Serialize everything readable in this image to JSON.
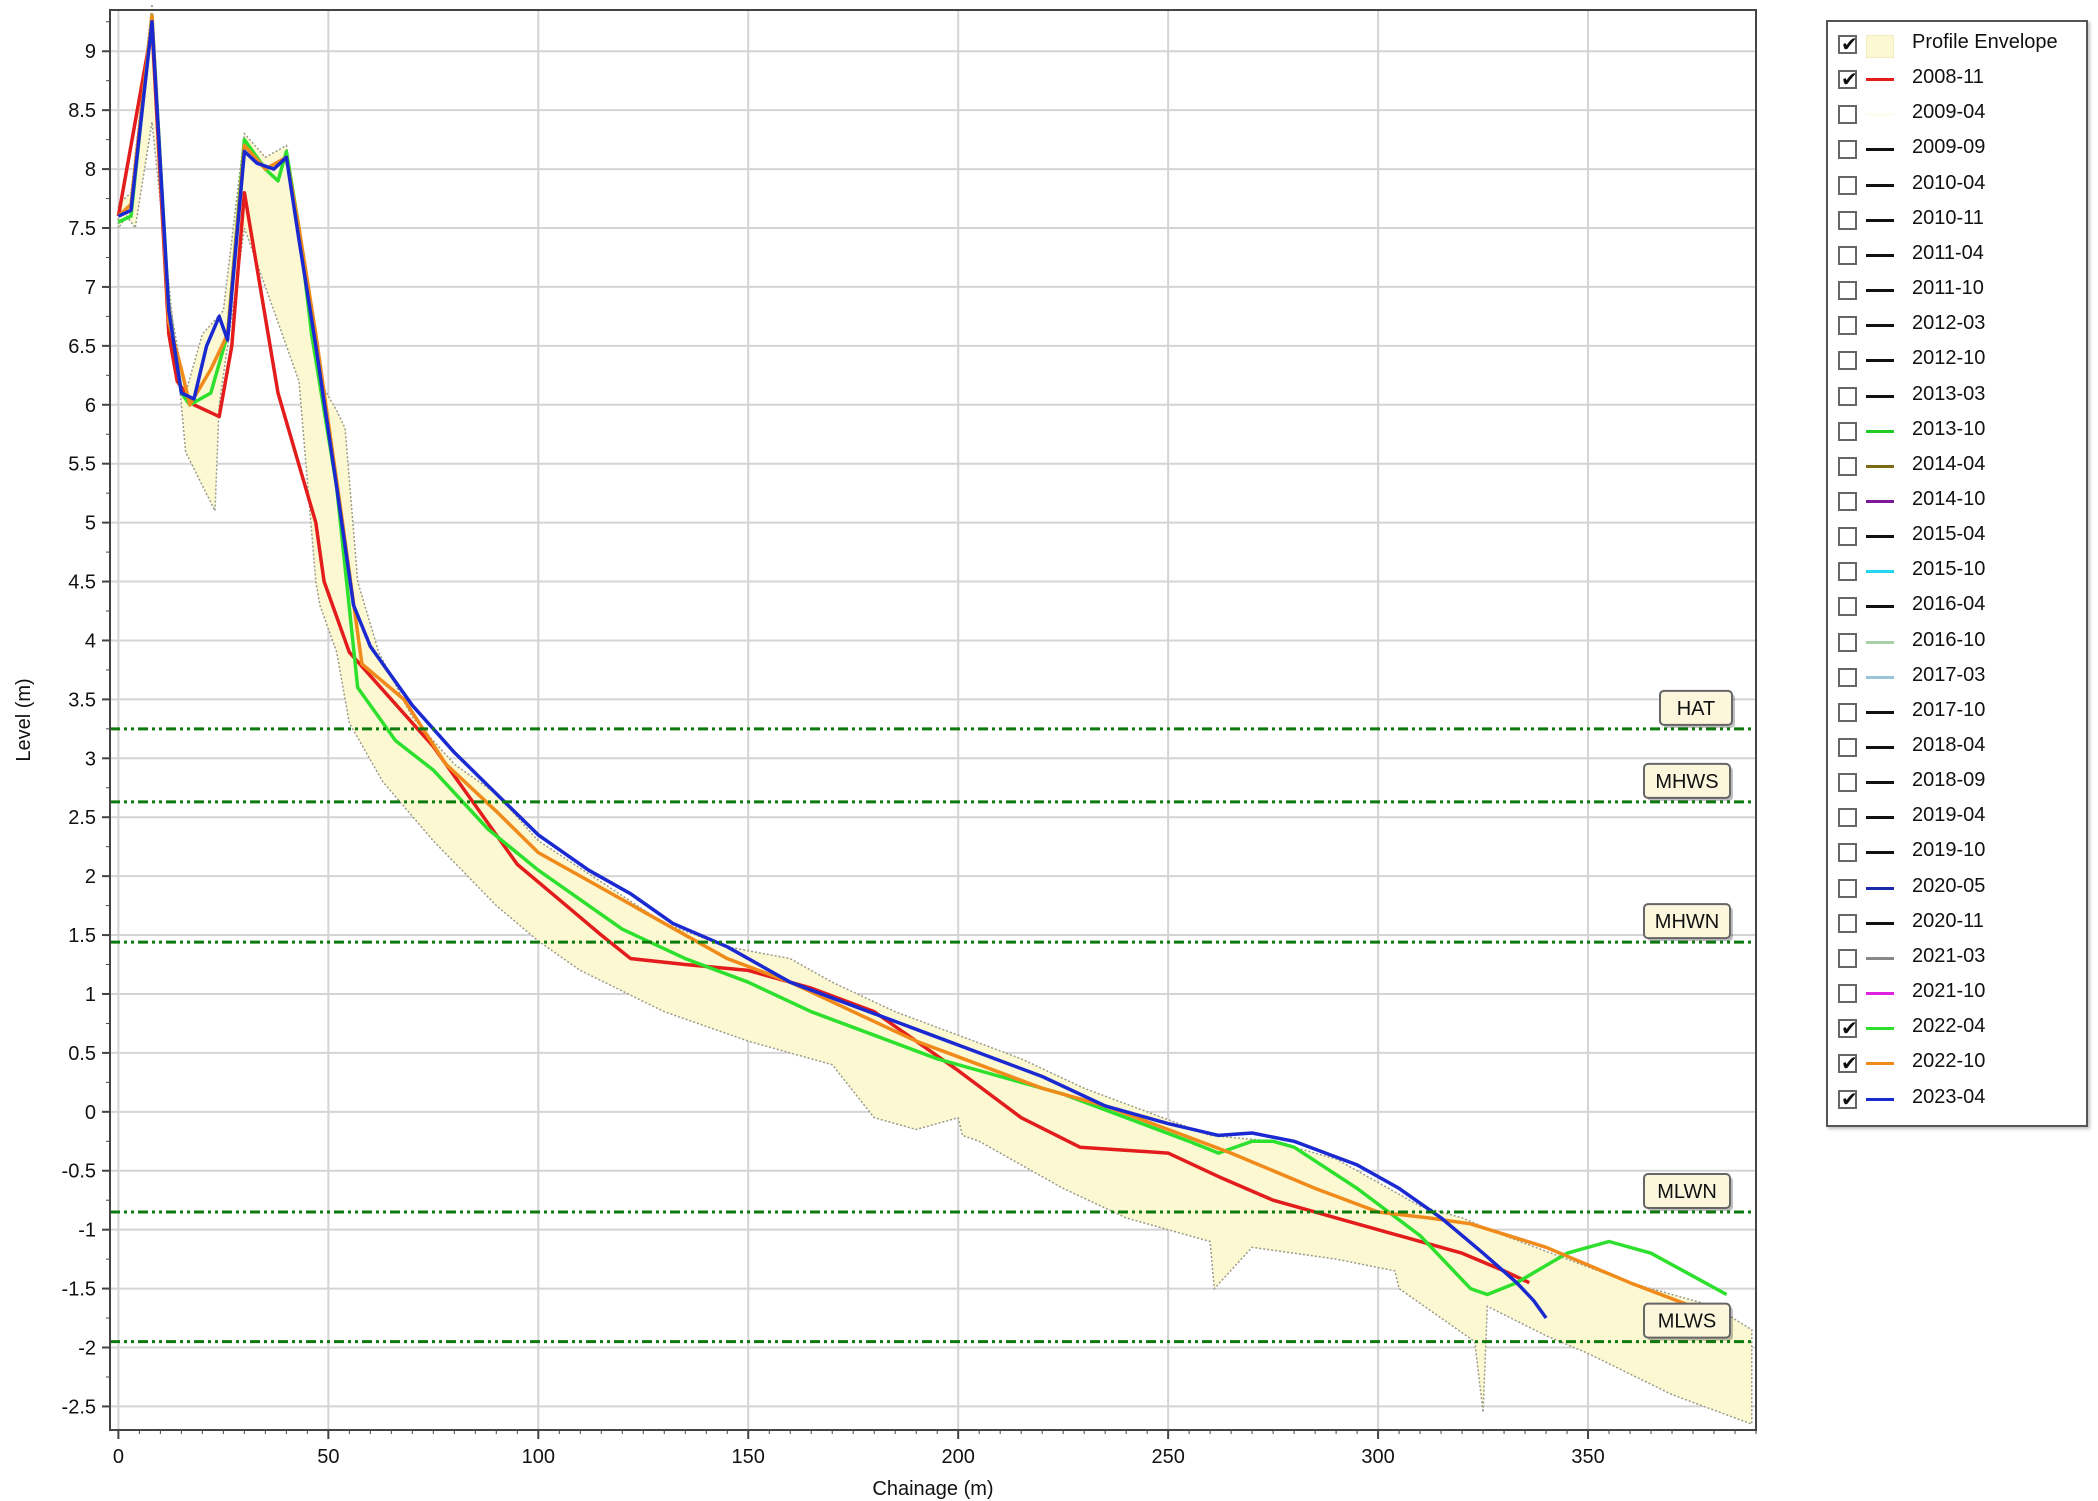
{
  "chart_data": {
    "type": "line",
    "xlabel": "Chainage (m)",
    "ylabel": "Level (m)",
    "xlim": [
      -2,
      390
    ],
    "ylim": [
      -2.7,
      9.35
    ],
    "x_ticks": [
      0,
      50,
      100,
      150,
      200,
      250,
      300,
      350
    ],
    "y_ticks": [
      9,
      8.5,
      8,
      7.5,
      7,
      6.5,
      6,
      5.5,
      5,
      4.5,
      4,
      3.5,
      3,
      2.5,
      2,
      1.5,
      1,
      0.5,
      0,
      -0.5,
      -1,
      -1.5,
      -2,
      -2.5
    ],
    "grid": true,
    "legend_position": "right",
    "envelope": {
      "name": "Profile Envelope",
      "color": "#fcf8d2",
      "upper": [
        [
          0,
          7.7
        ],
        [
          3,
          7.8
        ],
        [
          8,
          9.4
        ],
        [
          12,
          6.9
        ],
        [
          16,
          6.1
        ],
        [
          20,
          6.6
        ],
        [
          25,
          6.8
        ],
        [
          30,
          8.3
        ],
        [
          35,
          8.1
        ],
        [
          40,
          8.2
        ],
        [
          43,
          7.5
        ],
        [
          48,
          6.2
        ],
        [
          52,
          5.95
        ],
        [
          54,
          5.8
        ],
        [
          57,
          4.5
        ],
        [
          62,
          3.9
        ],
        [
          70,
          3.35
        ],
        [
          80,
          2.95
        ],
        [
          90,
          2.7
        ],
        [
          100,
          2.3
        ],
        [
          115,
          1.95
        ],
        [
          130,
          1.6
        ],
        [
          145,
          1.4
        ],
        [
          160,
          1.3
        ],
        [
          170,
          1.1
        ],
        [
          185,
          0.85
        ],
        [
          200,
          0.65
        ],
        [
          215,
          0.45
        ],
        [
          230,
          0.2
        ],
        [
          245,
          0.0
        ],
        [
          260,
          -0.2
        ],
        [
          275,
          -0.25
        ],
        [
          290,
          -0.4
        ],
        [
          300,
          -0.6
        ],
        [
          310,
          -0.8
        ],
        [
          320,
          -0.9
        ],
        [
          330,
          -1.05
        ],
        [
          345,
          -1.25
        ],
        [
          360,
          -1.45
        ],
        [
          380,
          -1.65
        ],
        [
          389,
          -1.85
        ]
      ],
      "lower": [
        [
          389,
          -2.65
        ],
        [
          370,
          -2.4
        ],
        [
          350,
          -2.05
        ],
        [
          340,
          -1.9
        ],
        [
          326,
          -1.65
        ],
        [
          325,
          -2.55
        ],
        [
          323,
          -1.95
        ],
        [
          305,
          -1.5
        ],
        [
          304,
          -1.35
        ],
        [
          290,
          -1.25
        ],
        [
          270,
          -1.15
        ],
        [
          261,
          -1.5
        ],
        [
          260,
          -1.1
        ],
        [
          240,
          -0.9
        ],
        [
          225,
          -0.65
        ],
        [
          205,
          -0.25
        ],
        [
          201,
          -0.2
        ],
        [
          200,
          -0.05
        ],
        [
          190,
          -0.15
        ],
        [
          180,
          -0.05
        ],
        [
          170,
          0.4
        ],
        [
          165,
          0.45
        ],
        [
          150,
          0.6
        ],
        [
          130,
          0.85
        ],
        [
          110,
          1.2
        ],
        [
          100,
          1.45
        ],
        [
          90,
          1.75
        ],
        [
          75,
          2.3
        ],
        [
          63,
          2.8
        ],
        [
          55,
          3.3
        ],
        [
          52,
          3.9
        ],
        [
          48,
          4.3
        ],
        [
          47,
          4.5
        ],
        [
          43,
          6.2
        ],
        [
          30,
          7.5
        ],
        [
          24,
          6.0
        ],
        [
          23,
          5.1
        ],
        [
          16,
          5.6
        ],
        [
          15,
          6.0
        ],
        [
          8,
          8.4
        ],
        [
          4,
          7.5
        ],
        [
          2,
          7.6
        ],
        [
          0,
          7.5
        ]
      ]
    },
    "series": [
      {
        "name": "2008-11",
        "color": "#e31c1c",
        "checked": true,
        "values": [
          [
            0,
            7.6
          ],
          [
            8,
            9.2
          ],
          [
            12,
            6.6
          ],
          [
            14,
            6.2
          ],
          [
            16,
            6.1
          ],
          [
            18,
            6.0
          ],
          [
            24,
            5.9
          ],
          [
            27,
            6.5
          ],
          [
            30,
            7.8
          ],
          [
            38,
            6.1
          ],
          [
            47,
            5.0
          ],
          [
            49,
            4.5
          ],
          [
            55,
            3.9
          ],
          [
            65,
            3.5
          ],
          [
            75,
            3.1
          ],
          [
            85,
            2.6
          ],
          [
            95,
            2.1
          ],
          [
            105,
            1.8
          ],
          [
            115,
            1.5
          ],
          [
            122,
            1.3
          ],
          [
            135,
            1.25
          ],
          [
            150,
            1.2
          ],
          [
            165,
            1.05
          ],
          [
            180,
            0.85
          ],
          [
            200,
            0.35
          ],
          [
            215,
            -0.05
          ],
          [
            229,
            -0.3
          ],
          [
            250,
            -0.35
          ],
          [
            262,
            -0.55
          ],
          [
            275,
            -0.75
          ],
          [
            290,
            -0.9
          ],
          [
            305,
            -1.05
          ],
          [
            320,
            -1.2
          ],
          [
            330,
            -1.35
          ],
          [
            336,
            -1.45
          ]
        ]
      },
      {
        "name": "2009-04",
        "color": "#fdfcef",
        "checked": false
      },
      {
        "name": "2009-09",
        "color": "#111111",
        "checked": false
      },
      {
        "name": "2010-04",
        "color": "#111111",
        "checked": false
      },
      {
        "name": "2010-11",
        "color": "#111111",
        "checked": false
      },
      {
        "name": "2011-04",
        "color": "#111111",
        "checked": false
      },
      {
        "name": "2011-10",
        "color": "#111111",
        "checked": false
      },
      {
        "name": "2012-03",
        "color": "#111111",
        "checked": false
      },
      {
        "name": "2012-10",
        "color": "#111111",
        "checked": false
      },
      {
        "name": "2013-03",
        "color": "#111111",
        "checked": false
      },
      {
        "name": "2013-10",
        "color": "#22cc22",
        "checked": false
      },
      {
        "name": "2014-04",
        "color": "#7a6a12",
        "checked": false
      },
      {
        "name": "2014-10",
        "color": "#7a1a9a",
        "checked": false
      },
      {
        "name": "2015-04",
        "color": "#111111",
        "checked": false
      },
      {
        "name": "2015-10",
        "color": "#22d8f0",
        "checked": false
      },
      {
        "name": "2016-04",
        "color": "#111111",
        "checked": false
      },
      {
        "name": "2016-10",
        "color": "#a8cfa8",
        "checked": false
      },
      {
        "name": "2017-03",
        "color": "#9cc2dc",
        "checked": false
      },
      {
        "name": "2017-10",
        "color": "#111111",
        "checked": false
      },
      {
        "name": "2018-04",
        "color": "#111111",
        "checked": false
      },
      {
        "name": "2018-09",
        "color": "#111111",
        "checked": false
      },
      {
        "name": "2019-04",
        "color": "#111111",
        "checked": false
      },
      {
        "name": "2019-10",
        "color": "#111111",
        "checked": false
      },
      {
        "name": "2020-05",
        "color": "#1a2aa8",
        "checked": false
      },
      {
        "name": "2020-11",
        "color": "#111111",
        "checked": false
      },
      {
        "name": "2021-03",
        "color": "#888888",
        "checked": false
      },
      {
        "name": "2021-10",
        "color": "#e020e0",
        "checked": false
      },
      {
        "name": "2022-04",
        "color": "#2ee02e",
        "checked": true,
        "values": [
          [
            0,
            7.55
          ],
          [
            3,
            7.6
          ],
          [
            8,
            9.3
          ],
          [
            12,
            6.8
          ],
          [
            15,
            6.1
          ],
          [
            17,
            6.0
          ],
          [
            22,
            6.1
          ],
          [
            26,
            6.6
          ],
          [
            30,
            8.25
          ],
          [
            35,
            8.0
          ],
          [
            38,
            7.9
          ],
          [
            40,
            8.15
          ],
          [
            43,
            7.5
          ],
          [
            46,
            6.6
          ],
          [
            52,
            5.3
          ],
          [
            57,
            3.6
          ],
          [
            66,
            3.15
          ],
          [
            75,
            2.9
          ],
          [
            88,
            2.4
          ],
          [
            100,
            2.05
          ],
          [
            110,
            1.8
          ],
          [
            120,
            1.55
          ],
          [
            135,
            1.3
          ],
          [
            150,
            1.1
          ],
          [
            165,
            0.85
          ],
          [
            180,
            0.65
          ],
          [
            195,
            0.45
          ],
          [
            210,
            0.3
          ],
          [
            225,
            0.15
          ],
          [
            240,
            -0.05
          ],
          [
            255,
            -0.25
          ],
          [
            262,
            -0.35
          ],
          [
            270,
            -0.25
          ],
          [
            275,
            -0.25
          ],
          [
            280,
            -0.3
          ],
          [
            295,
            -0.65
          ],
          [
            310,
            -1.05
          ],
          [
            322,
            -1.5
          ],
          [
            326,
            -1.55
          ],
          [
            333,
            -1.45
          ],
          [
            345,
            -1.2
          ],
          [
            355,
            -1.1
          ],
          [
            365,
            -1.2
          ],
          [
            383,
            -1.55
          ]
        ]
      },
      {
        "name": "2022-10",
        "color": "#f08a1a",
        "checked": true,
        "values": [
          [
            0,
            7.6
          ],
          [
            3,
            7.7
          ],
          [
            8,
            9.3
          ],
          [
            12,
            6.7
          ],
          [
            15,
            6.3
          ],
          [
            17,
            6.0
          ],
          [
            22,
            6.3
          ],
          [
            26,
            6.6
          ],
          [
            30,
            8.2
          ],
          [
            35,
            8.0
          ],
          [
            40,
            8.1
          ],
          [
            43,
            7.5
          ],
          [
            47,
            6.6
          ],
          [
            53,
            5.1
          ],
          [
            58,
            3.8
          ],
          [
            68,
            3.5
          ],
          [
            78,
            2.95
          ],
          [
            90,
            2.55
          ],
          [
            100,
            2.2
          ],
          [
            115,
            1.9
          ],
          [
            130,
            1.6
          ],
          [
            145,
            1.3
          ],
          [
            160,
            1.1
          ],
          [
            175,
            0.85
          ],
          [
            190,
            0.6
          ],
          [
            205,
            0.4
          ],
          [
            220,
            0.2
          ],
          [
            235,
            0.05
          ],
          [
            250,
            -0.15
          ],
          [
            265,
            -0.35
          ],
          [
            285,
            -0.65
          ],
          [
            300,
            -0.85
          ],
          [
            312,
            -0.9
          ],
          [
            322,
            -0.95
          ],
          [
            340,
            -1.15
          ],
          [
            360,
            -1.45
          ],
          [
            382,
            -1.75
          ]
        ]
      },
      {
        "name": "2023-04",
        "color": "#1a2ad0",
        "checked": true,
        "values": [
          [
            0,
            7.6
          ],
          [
            3,
            7.65
          ],
          [
            8,
            9.25
          ],
          [
            12,
            6.8
          ],
          [
            15,
            6.1
          ],
          [
            18,
            6.05
          ],
          [
            21,
            6.5
          ],
          [
            24,
            6.75
          ],
          [
            26,
            6.55
          ],
          [
            30,
            8.15
          ],
          [
            33,
            8.05
          ],
          [
            37,
            8.0
          ],
          [
            40,
            8.1
          ],
          [
            43,
            7.4
          ],
          [
            47,
            6.5
          ],
          [
            52,
            5.3
          ],
          [
            56,
            4.3
          ],
          [
            60,
            3.95
          ],
          [
            70,
            3.45
          ],
          [
            80,
            3.05
          ],
          [
            90,
            2.7
          ],
          [
            100,
            2.35
          ],
          [
            112,
            2.05
          ],
          [
            122,
            1.85
          ],
          [
            132,
            1.6
          ],
          [
            145,
            1.4
          ],
          [
            160,
            1.1
          ],
          [
            175,
            0.9
          ],
          [
            190,
            0.7
          ],
          [
            205,
            0.5
          ],
          [
            220,
            0.3
          ],
          [
            235,
            0.05
          ],
          [
            250,
            -0.1
          ],
          [
            262,
            -0.2
          ],
          [
            270,
            -0.18
          ],
          [
            280,
            -0.25
          ],
          [
            295,
            -0.45
          ],
          [
            305,
            -0.65
          ],
          [
            315,
            -0.9
          ],
          [
            325,
            -1.2
          ],
          [
            333,
            -1.45
          ],
          [
            337,
            -1.6
          ],
          [
            340,
            -1.75
          ]
        ]
      }
    ],
    "tide_levels": [
      {
        "label": "HAT",
        "value": 3.25
      },
      {
        "label": "MHWS",
        "value": 2.63
      },
      {
        "label": "MHWN",
        "value": 1.44
      },
      {
        "label": "MLWN",
        "value": -0.85
      },
      {
        "label": "MLWS",
        "value": -1.95
      }
    ],
    "tide_line_color": "#0d7a0d"
  }
}
